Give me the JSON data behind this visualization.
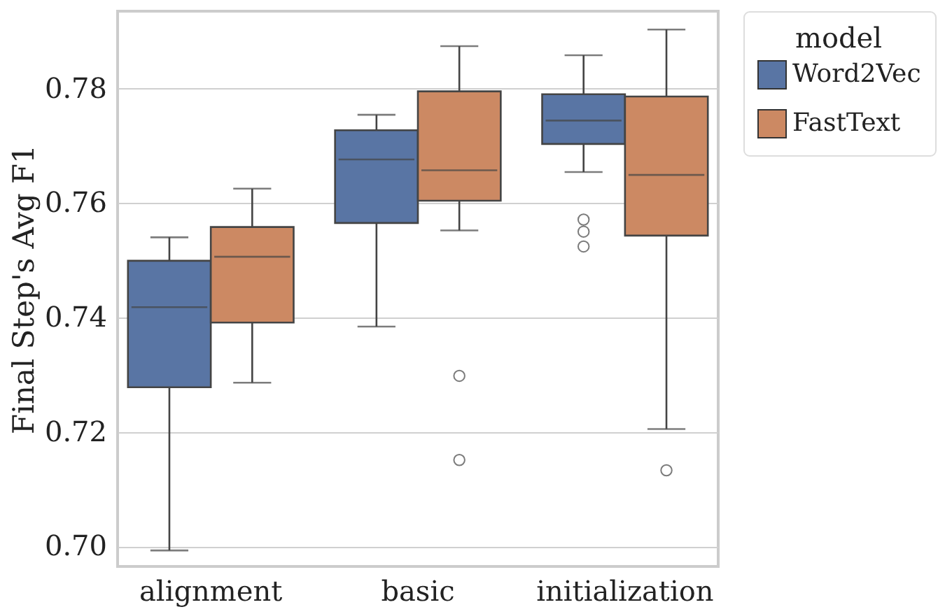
{
  "chart_data": {
    "type": "box",
    "ylabel": "Final Step's Avg F1",
    "categories": [
      "alignment",
      "basic",
      "initialization"
    ],
    "series": [
      {
        "name": "Word2Vec",
        "color": "#5975a4",
        "boxes": [
          {
            "low": 0.6993,
            "q1": 0.7278,
            "median": 0.7418,
            "q3": 0.7499,
            "high": 0.754
          },
          {
            "low": 0.7384,
            "q1": 0.7565,
            "median": 0.7676,
            "q3": 0.7727,
            "high": 0.7754
          },
          {
            "low": 0.7654,
            "q1": 0.7703,
            "median": 0.7744,
            "q3": 0.779,
            "high": 0.7858,
            "outliers": [
              0.7571,
              0.755,
              0.7524
            ]
          }
        ]
      },
      {
        "name": "FastText",
        "color": "#cc8963",
        "boxes": [
          {
            "low": 0.7286,
            "q1": 0.7391,
            "median": 0.7506,
            "q3": 0.7558,
            "high": 0.7625
          },
          {
            "low": 0.7552,
            "q1": 0.7604,
            "median": 0.7657,
            "q3": 0.7795,
            "high": 0.7874,
            "outliers": [
              0.7298,
              0.7151
            ]
          },
          {
            "low": 0.7205,
            "q1": 0.7543,
            "median": 0.7649,
            "q3": 0.7786,
            "high": 0.7903,
            "outliers": [
              0.7133
            ]
          }
        ]
      }
    ],
    "ylim": [
      0.6965,
      0.7935
    ],
    "yticks": [
      {
        "value": 0.7,
        "label": "0.70"
      },
      {
        "value": 0.72,
        "label": "0.72"
      },
      {
        "value": 0.74,
        "label": "0.74"
      },
      {
        "value": 0.76,
        "label": "0.76"
      },
      {
        "value": 0.78,
        "label": "0.78"
      }
    ],
    "grid": "y",
    "legend": "right",
    "legend_title": "model"
  }
}
